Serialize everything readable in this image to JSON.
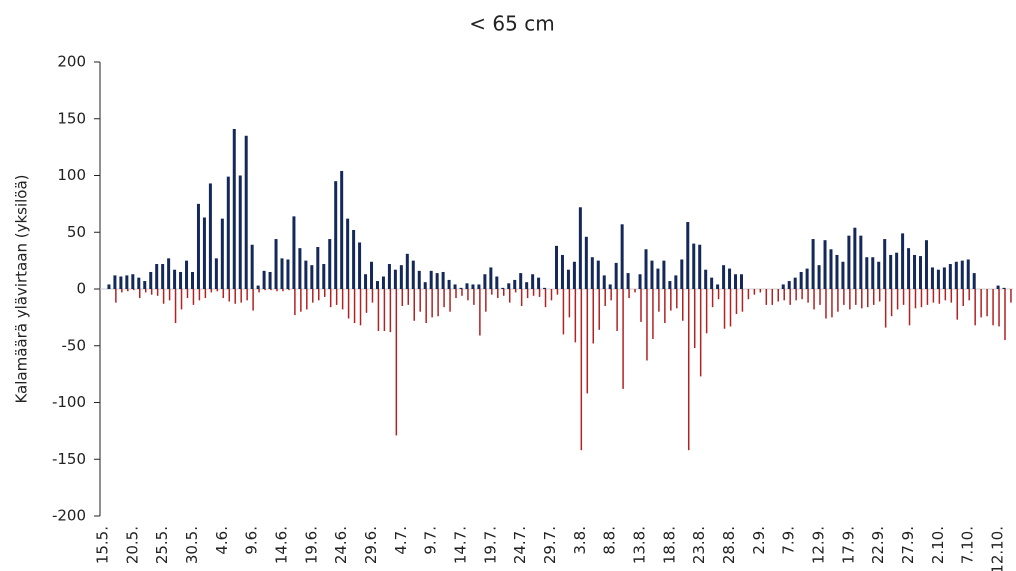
{
  "chart_data": {
    "type": "bar",
    "title": "< 65 cm",
    "y_label": "Kalamäärä ylävirtaan (yksilöä)",
    "categories": [
      "15.5.",
      null,
      null,
      null,
      null,
      "20.5.",
      null,
      null,
      null,
      null,
      "25.5.",
      null,
      null,
      null,
      null,
      "30.5.",
      null,
      null,
      null,
      null,
      "4.6.",
      null,
      null,
      null,
      null,
      "9.6.",
      null,
      null,
      null,
      null,
      "14.6.",
      null,
      null,
      null,
      null,
      "19.6.",
      null,
      null,
      null,
      null,
      "24.6.",
      null,
      null,
      null,
      null,
      "29.6.",
      null,
      null,
      null,
      null,
      "4.7.",
      null,
      null,
      null,
      null,
      "9.7.",
      null,
      null,
      null,
      null,
      "14.7.",
      null,
      null,
      null,
      null,
      "19.7.",
      null,
      null,
      null,
      null,
      "24.7.",
      null,
      null,
      null,
      null,
      "29.7.",
      null,
      null,
      null,
      null,
      "3.8.",
      null,
      null,
      null,
      null,
      "8.8.",
      null,
      null,
      null,
      null,
      "13.8.",
      null,
      null,
      null,
      null,
      "18.8.",
      null,
      null,
      null,
      null,
      "23.8.",
      null,
      null,
      null,
      null,
      "28.8.",
      null,
      null,
      null,
      null,
      "2.9.",
      null,
      null,
      null,
      null,
      "7.9.",
      null,
      null,
      null,
      null,
      "12.9.",
      null,
      null,
      null,
      null,
      "17.9.",
      null,
      null,
      null,
      null,
      "22.9.",
      null,
      null,
      null,
      null,
      "27.9.",
      null,
      null,
      null,
      null,
      "2.10.",
      null,
      null,
      null,
      null,
      "7.10.",
      null,
      null,
      null,
      null,
      "12.10.",
      null,
      null
    ],
    "series": [
      {
        "color": "#14285a",
        "values": [
          0,
          4,
          12,
          11,
          12,
          13,
          10,
          7,
          15,
          22,
          22,
          27,
          17,
          15,
          25,
          15,
          75,
          63,
          93,
          27,
          62,
          99,
          141,
          100,
          135,
          39,
          3,
          16,
          15,
          44,
          27,
          26,
          64,
          36,
          25,
          21,
          37,
          22,
          44,
          95,
          104,
          62,
          52,
          41,
          13,
          24,
          7,
          11,
          22,
          17,
          21,
          31,
          25,
          16,
          6,
          16,
          14,
          15,
          8,
          4,
          1,
          5,
          4,
          4,
          13,
          19,
          11,
          1,
          5,
          8,
          14,
          6,
          13,
          10,
          1,
          0,
          38,
          30,
          17,
          24,
          72,
          46,
          28,
          25,
          12,
          4,
          23,
          57,
          14,
          0,
          13,
          35,
          25,
          18,
          25,
          7,
          12,
          26,
          59,
          40,
          39,
          17,
          10,
          4,
          21,
          18,
          13,
          13,
          0,
          0,
          0,
          0,
          0,
          0,
          4,
          7,
          10,
          15,
          18,
          44,
          21,
          43,
          35,
          30,
          24,
          47,
          54,
          47,
          28,
          28,
          24,
          44,
          30,
          32,
          49,
          36,
          30,
          29,
          43,
          19,
          17,
          19,
          22,
          24,
          25,
          26,
          14,
          0,
          0,
          0,
          3,
          1,
          0
        ]
      },
      {
        "color": "#b22222",
        "values": [
          0,
          0,
          -12,
          -3,
          -2,
          -1,
          -8,
          -3,
          -5,
          -6,
          -13,
          -10,
          -30,
          -18,
          -8,
          -14,
          -10,
          -8,
          -3,
          -2,
          -8,
          -11,
          -13,
          -12,
          -10,
          -19,
          -3,
          -1,
          -1,
          -2,
          -2,
          -1,
          -23,
          -20,
          -18,
          -12,
          -10,
          -7,
          -16,
          -14,
          -18,
          -26,
          -30,
          -32,
          -21,
          -12,
          -37,
          -37,
          -38,
          -129,
          -15,
          -14,
          -28,
          -20,
          -30,
          -25,
          -24,
          -16,
          -20,
          -8,
          -6,
          -10,
          -14,
          -41,
          -20,
          -5,
          -8,
          -6,
          -12,
          -3,
          -15,
          -8,
          -6,
          -7,
          -16,
          -10,
          -5,
          -40,
          -25,
          -47,
          -142,
          -92,
          -48,
          -36,
          -15,
          -10,
          -37,
          -88,
          -8,
          -3,
          -29,
          -63,
          -44,
          -20,
          -30,
          -19,
          -17,
          -28,
          -142,
          -52,
          -77,
          -39,
          -16,
          -9,
          -35,
          -33,
          -22,
          -20,
          -9,
          -5,
          -3,
          -14,
          -14,
          -11,
          -10,
          -14,
          -10,
          -9,
          -12,
          -18,
          -14,
          -26,
          -25,
          -20,
          -14,
          -18,
          -14,
          -17,
          -16,
          -14,
          -11,
          -34,
          -24,
          -18,
          -14,
          -32,
          -17,
          -16,
          -14,
          -12,
          -13,
          -10,
          -12,
          -27,
          -15,
          -10,
          -32,
          -25,
          -24,
          -32,
          -33,
          -45,
          -12
        ]
      }
    ],
    "ylim": [
      -200,
      200
    ],
    "yticks": [
      -200,
      -150,
      -100,
      -50,
      0,
      50,
      100,
      150,
      200
    ]
  }
}
